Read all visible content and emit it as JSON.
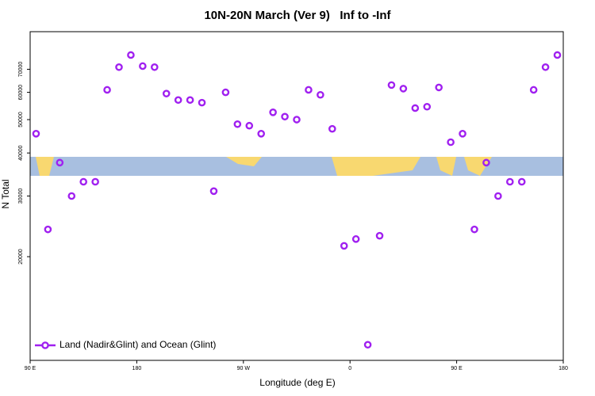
{
  "chart_data": {
    "type": "scatter",
    "title": "10N-20N March (Ver 9)   Inf to -Inf",
    "xlabel": "Longitude (deg E)",
    "ylabel": "N Total",
    "log_y": true,
    "legend": "bottom-left",
    "xlim": [
      90,
      540
    ],
    "ylim": [
      10000,
      90000
    ],
    "xticks": [
      {
        "value": 90,
        "label": "90 E"
      },
      180,
      {
        "value": 270,
        "label": "90 W"
      },
      {
        "value": 360,
        "label": "0"
      },
      {
        "value": 450,
        "label": "90 E"
      },
      {
        "value": 540,
        "label": "180"
      }
    ],
    "yticks": [
      20000,
      30000,
      40000,
      50000,
      60000,
      70000
    ],
    "series": [
      {
        "name": "Land (Nadir&Glint) and Ocean (Glint)",
        "color": "#a020f0",
        "x": [
          95,
          105,
          115,
          125,
          135,
          145,
          155,
          165,
          175,
          185,
          195,
          205,
          215,
          225,
          235,
          245,
          255,
          265,
          275,
          285,
          295,
          305,
          315,
          325,
          335,
          345,
          355,
          365,
          375,
          385,
          395,
          405,
          415,
          425,
          435,
          445,
          455,
          465,
          475,
          485,
          495,
          505,
          515,
          525,
          535
        ],
        "values": [
          45500,
          24000,
          37500,
          30000,
          33000,
          33000,
          61000,
          71000,
          77000,
          71500,
          71000,
          59500,
          57000,
          57000,
          56000,
          31000,
          60000,
          48500,
          48000,
          45500,
          52500,
          51000,
          50000,
          61000,
          59000,
          47000,
          21500,
          22500,
          11100,
          23000,
          63000,
          61500,
          54000,
          54500,
          62000,
          43000,
          45500,
          24000,
          37500,
          30000,
          33000,
          33000,
          61000,
          71000,
          77000
        ]
      }
    ]
  }
}
